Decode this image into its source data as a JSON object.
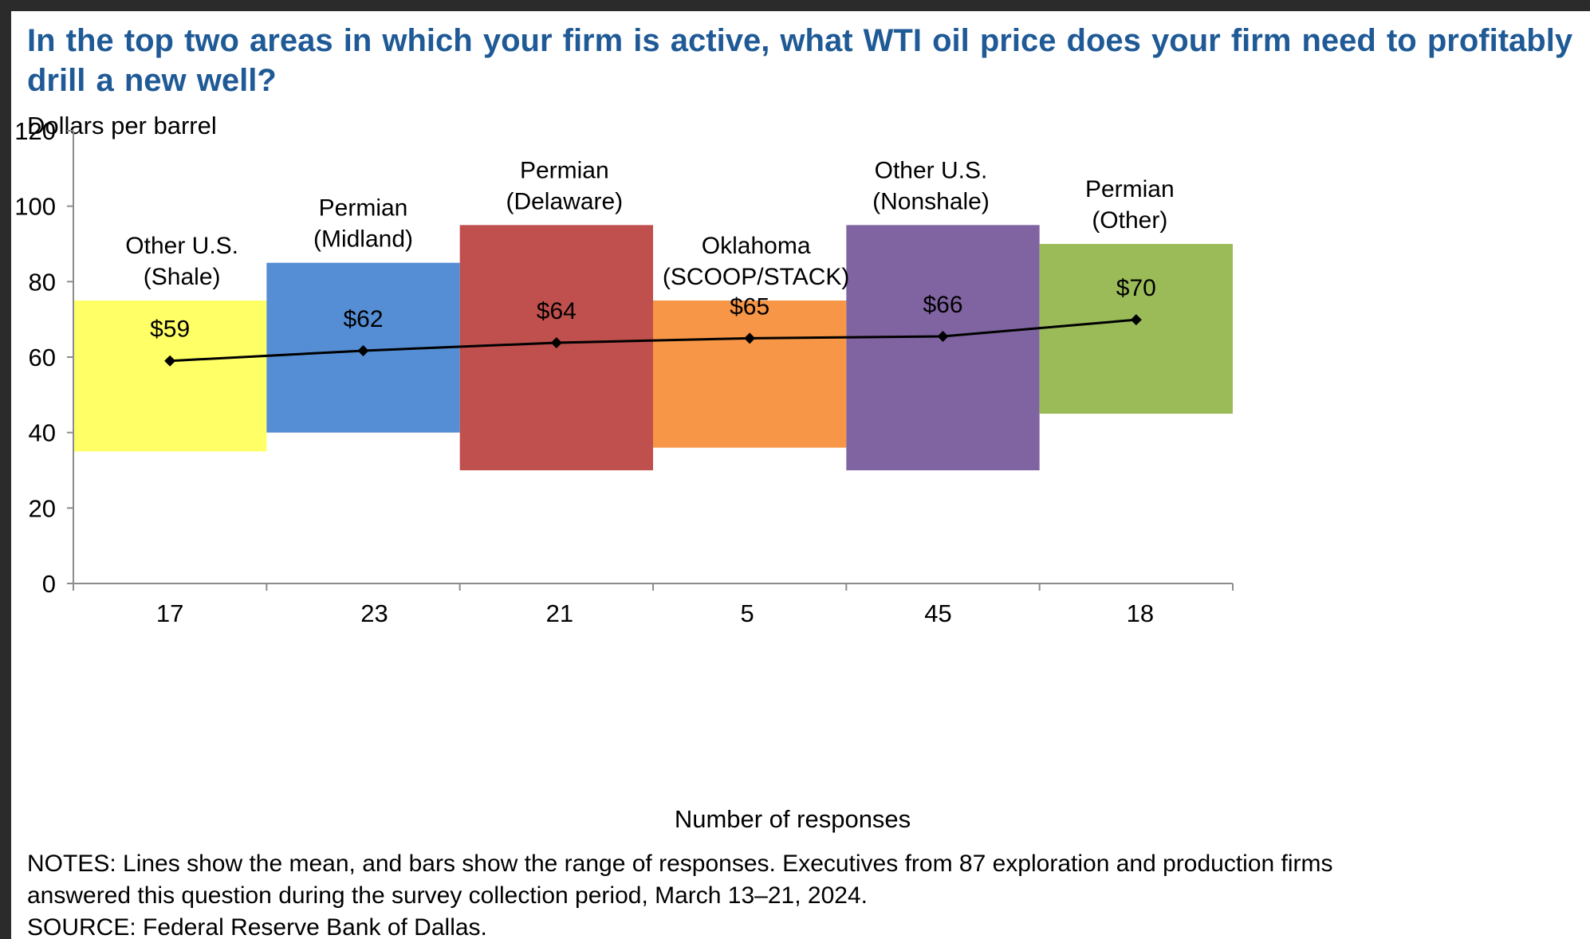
{
  "chart_data": {
    "type": "bar",
    "title": "In the top two areas in which your firm is active, what WTI oil price does your firm need to profitably drill a new well?",
    "ylabel": "Dollars per barrel",
    "xlabel": "Number of responses",
    "ylim": [
      0,
      120
    ],
    "yticks": [
      "0",
      "20",
      "40",
      "60",
      "80",
      "100",
      "120"
    ],
    "grid": false,
    "categories": [
      {
        "name_lines": [
          "Other U.S.",
          "(Shale)"
        ],
        "responses": "17",
        "low": 35,
        "high": 75,
        "mean": 59,
        "mean_label": "$59",
        "color": "#ffff66"
      },
      {
        "name_lines": [
          "Permian",
          "(Midland)"
        ],
        "responses": "23",
        "low": 40,
        "high": 85,
        "mean": 61.7,
        "mean_label": "$62",
        "color": "#558ed5"
      },
      {
        "name_lines": [
          "Permian",
          "(Delaware)"
        ],
        "responses": "21",
        "low": 30,
        "high": 95,
        "mean": 63.8,
        "mean_label": "$64",
        "color": "#c0504d"
      },
      {
        "name_lines": [
          "Oklahoma",
          "(SCOOP/STACK)"
        ],
        "responses": "5",
        "low": 36,
        "high": 75,
        "mean": 65,
        "mean_label": "$65",
        "color": "#f79646"
      },
      {
        "name_lines": [
          "Other U.S.",
          "(Nonshale)"
        ],
        "responses": "45",
        "low": 30,
        "high": 95,
        "mean": 65.5,
        "mean_label": "$66",
        "color": "#8064a2"
      },
      {
        "name_lines": [
          "Permian",
          "(Other)"
        ],
        "responses": "18",
        "low": 45,
        "high": 90,
        "mean": 69.9,
        "mean_label": "$70",
        "color": "#9bbb59"
      }
    ],
    "series": [
      {
        "values": [
          59,
          61.7,
          63.8,
          65,
          65.5,
          69.9
        ]
      }
    ],
    "line_color": "#000000"
  },
  "notes": {
    "line1": "NOTES: Lines show the mean, and bars show the range of responses. Executives from 87 exploration and production firms",
    "line2": "answered this question during the survey collection period, March 13–21, 2024.",
    "source": "SOURCE: Federal Reserve Bank of Dallas."
  }
}
